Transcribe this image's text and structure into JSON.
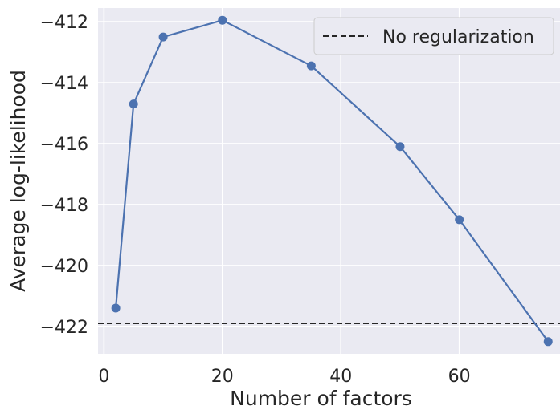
{
  "chart_data": {
    "type": "line",
    "title": "",
    "xlabel": "Number of factors",
    "ylabel": "Average log-likelihood",
    "xlim": [
      -1,
      77
    ],
    "ylim": [
      -422.9,
      -411.55
    ],
    "xticks": [
      0,
      20,
      40,
      60
    ],
    "yticks": [
      -412,
      -414,
      -416,
      -418,
      -420,
      -422
    ],
    "x_tick_labels": [
      "0",
      "20",
      "40",
      "60"
    ],
    "y_tick_labels": [
      "−412",
      "−414",
      "−416",
      "−418",
      "−420",
      "−422"
    ],
    "grid": true,
    "background": "#eaeaf2",
    "series": [
      {
        "color": "#4c72b0",
        "marker": "circle",
        "x": [
          2,
          5,
          10,
          20,
          35,
          50,
          60,
          75
        ],
        "y": [
          -421.4,
          -414.7,
          -412.5,
          -411.95,
          -413.45,
          -416.1,
          -418.5,
          -422.5
        ]
      }
    ],
    "reference_lines": [
      {
        "name": "No regularization",
        "orientation": "horizontal",
        "y": -421.9,
        "style": "dashed",
        "color": "#262626"
      }
    ],
    "legend": {
      "position": "top-right",
      "entries": [
        "No regularization"
      ]
    }
  }
}
